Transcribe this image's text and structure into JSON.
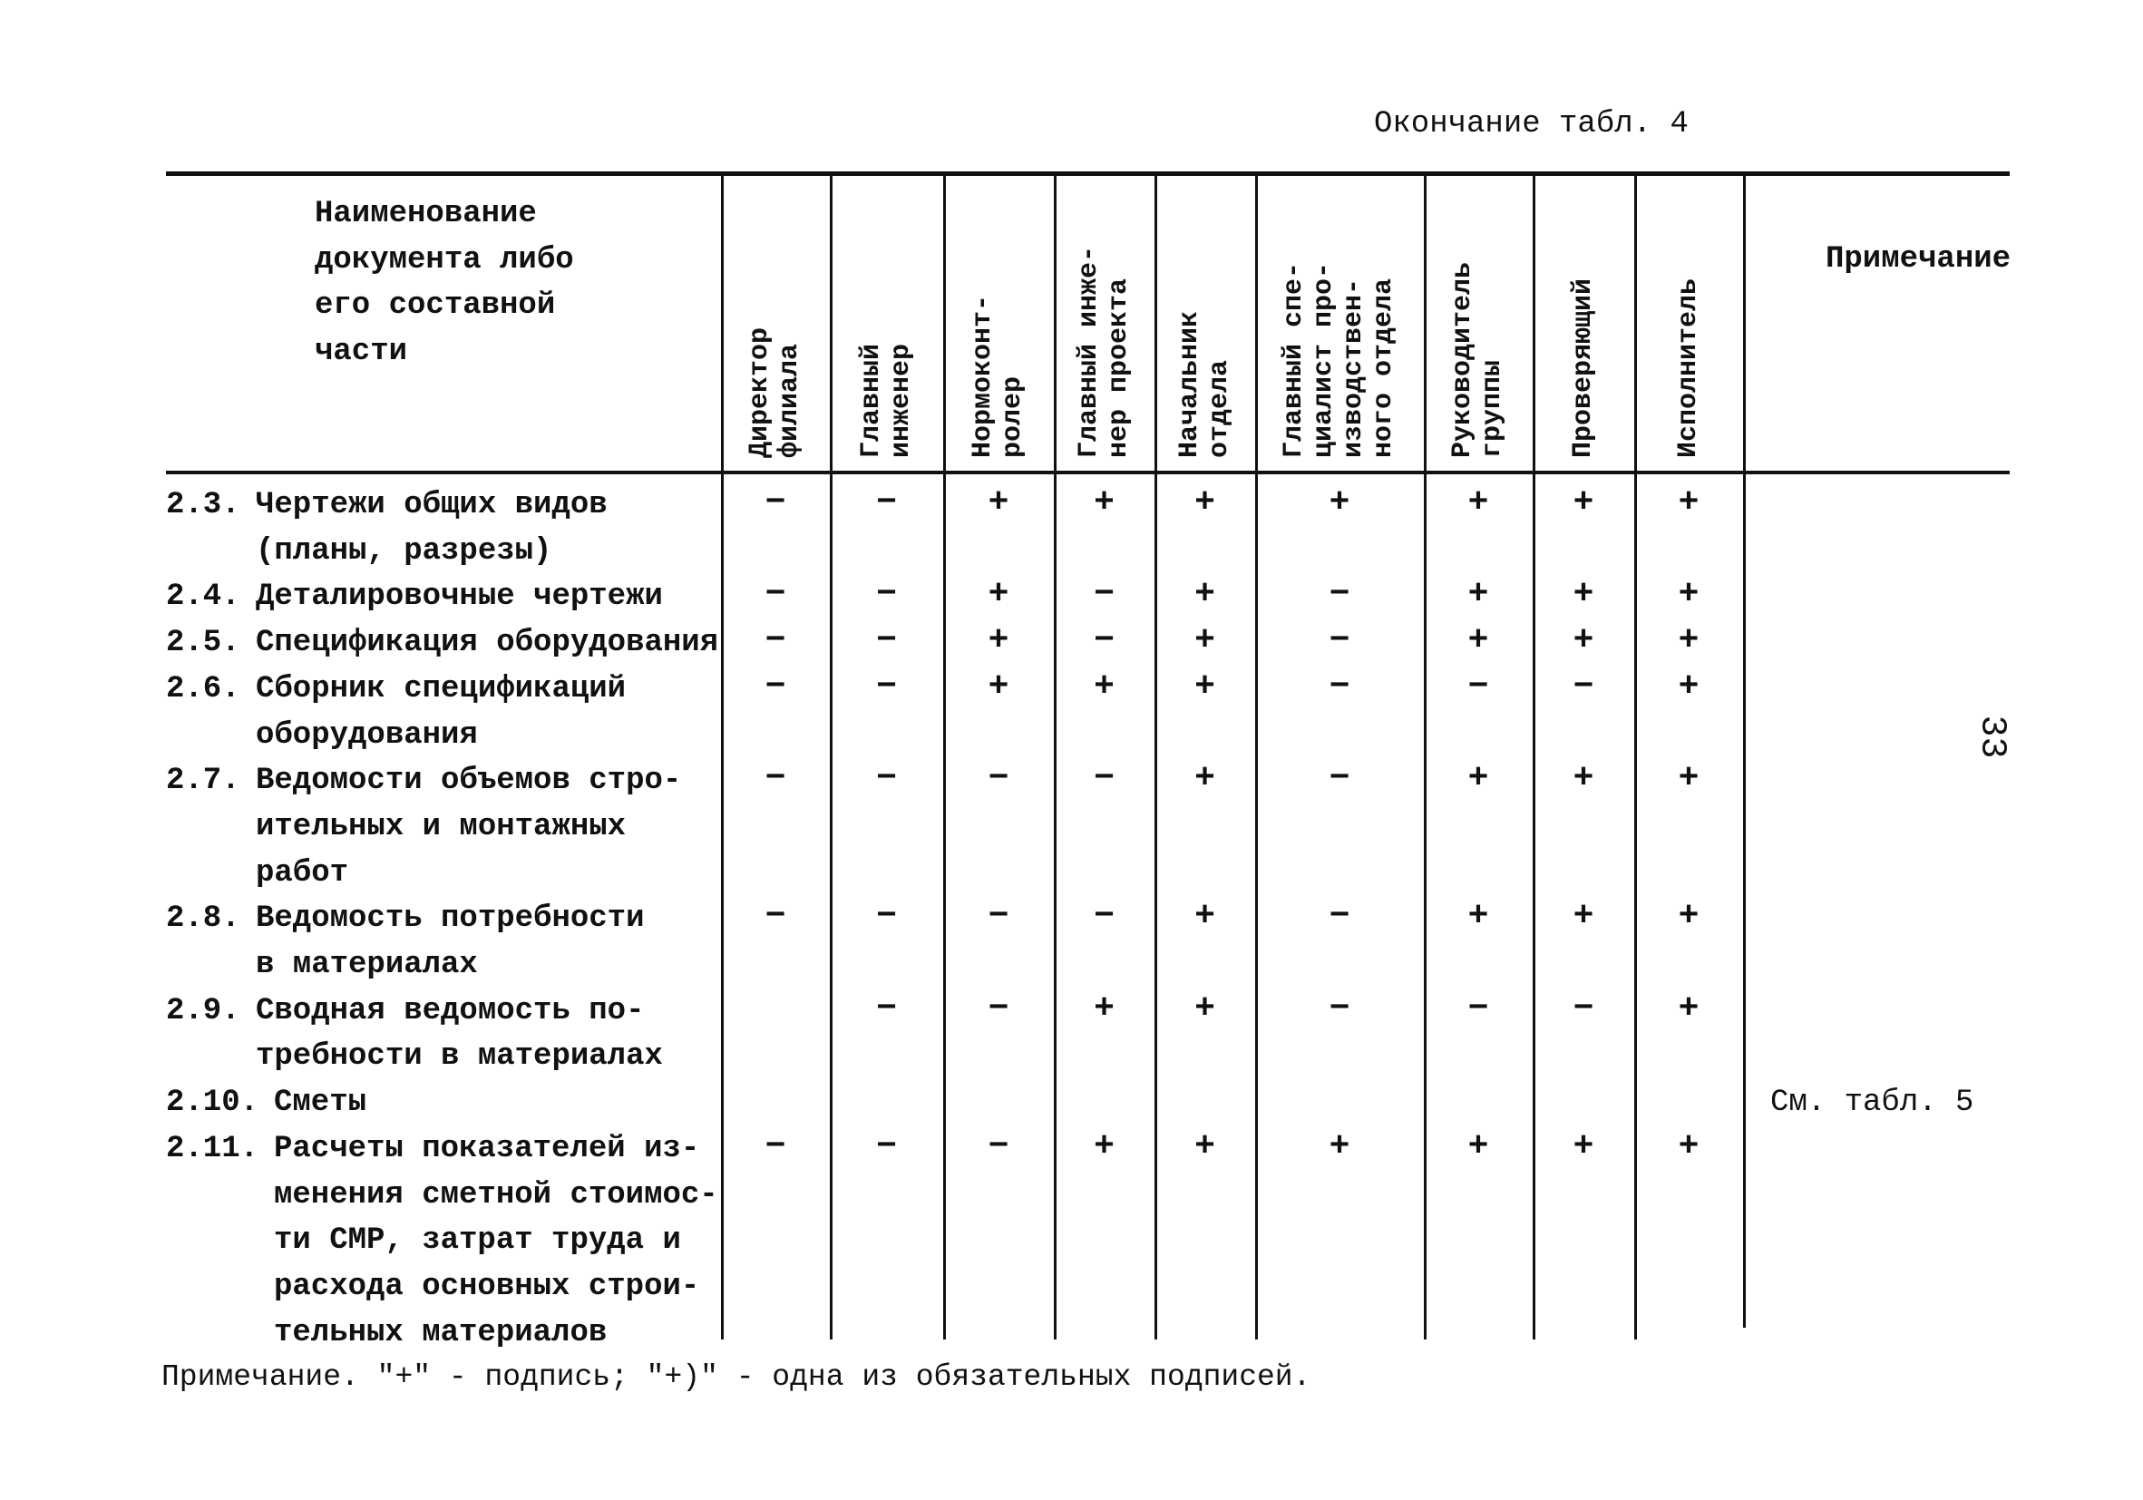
{
  "caption": "Окончание табл. 4",
  "page_number": "33",
  "header": {
    "name_column": [
      "Наименование",
      "документа либо",
      "его составной",
      "части"
    ],
    "columns": [
      "Директор\nфилиала",
      "Главный\nинженер",
      "Нормоконт-\nролер",
      "Главный инже-\nнер проекта",
      "Начальник\nотдела",
      "Главный спе-\nциалист про-\nизводствен-\nного отдела",
      "Руководитель\nгруппы",
      "Проверяющий",
      "Исполнитель"
    ],
    "note_column": "Примечание"
  },
  "rows": [
    {
      "num": "2.3.",
      "lines": [
        "Чертежи общих видов",
        "(планы, разрезы)"
      ],
      "marks": [
        "−",
        "−",
        "+",
        "+",
        "+",
        "+",
        "+",
        "+",
        "+"
      ],
      "note": ""
    },
    {
      "num": "2.4.",
      "lines": [
        "Деталировочные чертежи"
      ],
      "marks": [
        "−",
        "−",
        "+",
        "−",
        "+",
        "−",
        "+",
        "+",
        "+"
      ],
      "note": ""
    },
    {
      "num": "2.5.",
      "lines": [
        "Спецификация оборудования"
      ],
      "marks": [
        "−",
        "−",
        "+",
        "−",
        "+",
        "−",
        "+",
        "+",
        "+"
      ],
      "note": ""
    },
    {
      "num": "2.6.",
      "lines": [
        "Сборник спецификаций",
        "оборудования"
      ],
      "marks": [
        "−",
        "−",
        "+",
        "+",
        "+",
        "−",
        "−",
        "−",
        "+"
      ],
      "note": ""
    },
    {
      "num": "2.7.",
      "lines": [
        "Ведомости объемов стро-",
        "ительных и монтажных",
        "работ"
      ],
      "marks": [
        "−",
        "−",
        "−",
        "−",
        "+",
        "−",
        "+",
        "+",
        "+"
      ],
      "note": ""
    },
    {
      "num": "2.8.",
      "lines": [
        "Ведомость потребности",
        "в материалах"
      ],
      "marks": [
        "−",
        "−",
        "−",
        "−",
        "+",
        "−",
        "+",
        "+",
        "+"
      ],
      "note": ""
    },
    {
      "num": "2.9.",
      "lines": [
        "Сводная ведомость по-",
        "требности в материалах"
      ],
      "marks": [
        "",
        "−",
        "−",
        "+",
        "+",
        "−",
        "−",
        "−",
        "+"
      ],
      "note": ""
    },
    {
      "num": "2.10.",
      "lines": [
        "Сметы"
      ],
      "marks": [
        "",
        "",
        "",
        "",
        "",
        "",
        "",
        "",
        ""
      ],
      "note": "См. табл. 5"
    },
    {
      "num": "2.11.",
      "lines": [
        "Расчеты показателей из-",
        "менения сметной стоимос-",
        "ти СМР, затрат труда и",
        "расхода основных строи-",
        "тельных материалов"
      ],
      "marks": [
        "−",
        "−",
        "−",
        "+",
        "+",
        "+",
        "+",
        "+",
        "+"
      ],
      "note": ""
    }
  ],
  "footnote": "Примечание. \"+\" - подпись; \"+)\" - одна из обязательных подписей."
}
